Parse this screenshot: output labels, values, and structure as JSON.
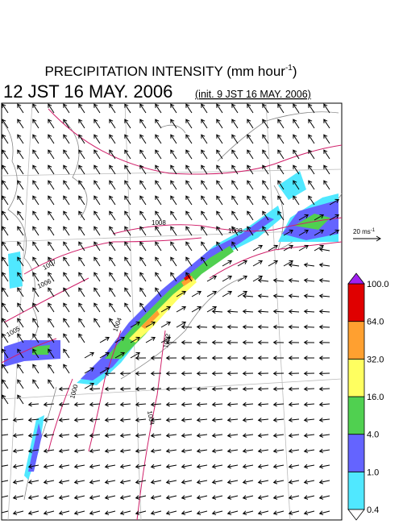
{
  "title": {
    "text": "PRECIPITATION INTENSITY (mm hour",
    "superscript": "-1",
    "close": ")"
  },
  "valid_time": "12 JST 16 MAY. 2006",
  "init_time": "(init. 9 JST 16 MAY. 2006)",
  "reference_vector": {
    "label": "20 ms",
    "superscript": "-1"
  },
  "colorbar": {
    "labels": [
      "0.4",
      "1.0",
      "4.0",
      "16.0",
      "32.0",
      "64.0",
      "100.0"
    ],
    "under_color": "#ffffff",
    "over_color": "#a020f0",
    "colors": [
      "#50e8ff",
      "#6464ff",
      "#50d050",
      "#ffff60",
      "#ffa030",
      "#e00000"
    ]
  },
  "contour_labels": [
    "1008",
    "1008",
    "1007",
    "1006",
    "1005",
    "1004",
    "1002",
    "1000",
    "1004"
  ]
}
